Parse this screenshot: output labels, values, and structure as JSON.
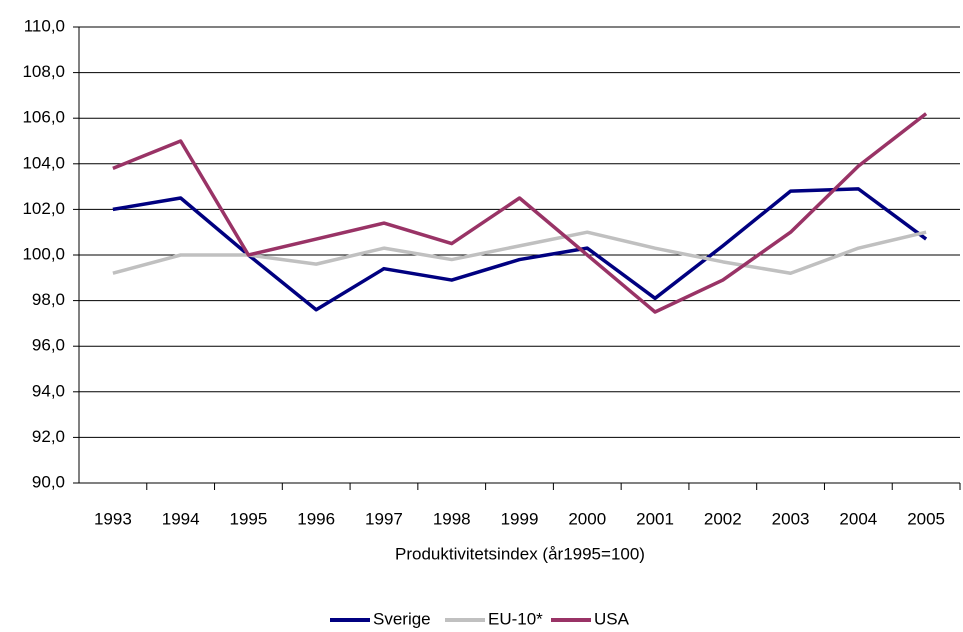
{
  "chart_data": {
    "type": "line",
    "x_label": "Produktivitetsindex (år1995=100)",
    "categories": [
      "1993",
      "1994",
      "1995",
      "1996",
      "1997",
      "1998",
      "1999",
      "2000",
      "2001",
      "2002",
      "2003",
      "2004",
      "2005"
    ],
    "series": [
      {
        "name": "Sverige",
        "color": "#000080",
        "values": [
          102.0,
          102.5,
          100.0,
          97.6,
          99.4,
          98.9,
          99.8,
          100.3,
          98.1,
          100.4,
          102.8,
          102.9,
          100.7
        ]
      },
      {
        "name": "EU-10*",
        "color": "#c0c0c0",
        "values": [
          99.2,
          100.0,
          100.0,
          99.6,
          100.3,
          99.8,
          100.4,
          101.0,
          100.3,
          99.7,
          99.2,
          100.3,
          101.0
        ]
      },
      {
        "name": "USA",
        "color": "#993366",
        "values": [
          103.8,
          105.0,
          100.0,
          100.7,
          101.4,
          100.5,
          102.5,
          100.0,
          97.5,
          98.9,
          101.0,
          103.9,
          106.2
        ]
      }
    ],
    "ylim": [
      90,
      110
    ],
    "yticks": [
      {
        "value": 90,
        "label": "90,0"
      },
      {
        "value": 92,
        "label": "92,0"
      },
      {
        "value": 94,
        "label": "94,0"
      },
      {
        "value": 96,
        "label": "96,0"
      },
      {
        "value": 98,
        "label": "98,0"
      },
      {
        "value": 100,
        "label": "100,0"
      },
      {
        "value": 102,
        "label": "102,0"
      },
      {
        "value": 104,
        "label": "104,0"
      },
      {
        "value": 106,
        "label": "106,0"
      },
      {
        "value": 108,
        "label": "108,0"
      },
      {
        "value": 110,
        "label": "110,0"
      }
    ],
    "grid": true
  }
}
